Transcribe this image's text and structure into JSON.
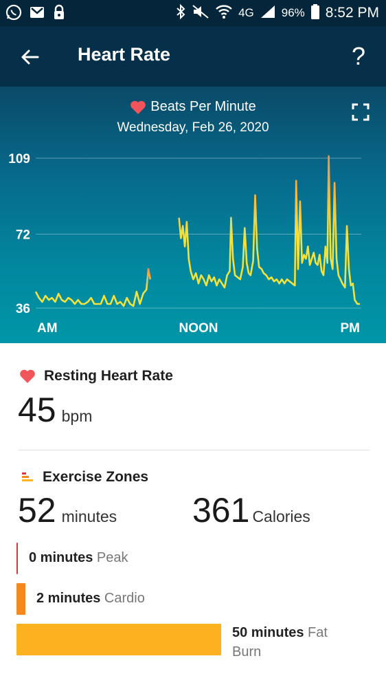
{
  "status_bar": {
    "battery": "96%",
    "time": "8:52 PM",
    "network": "4G",
    "left_icons": [
      "whatsapp-icon",
      "gmail-icon",
      "lock-icon"
    ],
    "right_icons": [
      "bluetooth-icon",
      "mute-icon",
      "wifi-icon",
      "signal-icon",
      "battery-icon"
    ]
  },
  "app_bar": {
    "title": "Heart Rate",
    "back_icon": "back-arrow-icon",
    "help_label": "?"
  },
  "chart": {
    "title": "Beats Per Minute",
    "subtitle": "Wednesday, Feb 26, 2020",
    "expand_icon": "fullscreen-icon"
  },
  "chart_data": {
    "type": "line",
    "title": "Beats Per Minute",
    "subtitle": "Wednesday, Feb 26, 2020",
    "xlabel": "",
    "ylabel": "",
    "x_tick_labels": [
      "AM",
      "NOON",
      "PM"
    ],
    "y_ticks": [
      36,
      72,
      109
    ],
    "ylim": [
      36,
      109
    ],
    "grid": true,
    "series": [
      {
        "color_low": "#f4e23c",
        "color_high": "#f2934a",
        "segments": [
          [
            [
              0.0,
              44
            ],
            [
              0.5,
              41
            ],
            [
              1.0,
              39
            ],
            [
              1.5,
              42
            ],
            [
              2.0,
              40
            ],
            [
              2.5,
              41
            ],
            [
              3.0,
              39
            ],
            [
              3.5,
              43
            ],
            [
              4.0,
              40
            ],
            [
              4.5,
              39
            ],
            [
              5.0,
              41
            ],
            [
              5.5,
              40
            ],
            [
              6.0,
              38
            ],
            [
              6.5,
              40
            ],
            [
              7.0,
              38
            ],
            [
              7.5,
              38
            ],
            [
              8.0,
              39
            ],
            [
              8.5,
              41
            ],
            [
              9.0,
              38
            ],
            [
              9.5,
              38
            ],
            [
              10.0,
              38
            ],
            [
              10.5,
              42
            ],
            [
              11.0,
              38
            ],
            [
              11.5,
              38
            ],
            [
              12.0,
              42
            ],
            [
              12.5,
              38
            ],
            [
              13.0,
              39
            ],
            [
              13.5,
              37
            ],
            [
              14.0,
              41
            ],
            [
              14.5,
              38
            ],
            [
              15.0,
              37
            ],
            [
              15.5,
              44
            ],
            [
              16.0,
              38
            ],
            [
              16.5,
              43
            ],
            [
              17.0,
              45
            ],
            [
              17.3,
              55
            ],
            [
              17.6,
              50
            ]
          ],
          [
            [
              22.0,
              80
            ],
            [
              22.3,
              70
            ],
            [
              22.6,
              76
            ],
            [
              22.9,
              66
            ],
            [
              23.2,
              78
            ],
            [
              23.5,
              60
            ],
            [
              23.8,
              54
            ],
            [
              24.2,
              50
            ],
            [
              24.6,
              53
            ],
            [
              25.0,
              48
            ],
            [
              25.4,
              52
            ],
            [
              25.8,
              50
            ],
            [
              26.2,
              47
            ],
            [
              26.6,
              52
            ],
            [
              27.0,
              49
            ],
            [
              27.4,
              51
            ],
            [
              27.8,
              47
            ],
            [
              28.2,
              50
            ],
            [
              28.6,
              48
            ],
            [
              29.0,
              46
            ],
            [
              29.4,
              52
            ],
            [
              29.8,
              54
            ],
            [
              30.0,
              80
            ],
            [
              30.3,
              60
            ],
            [
              30.6,
              52
            ],
            [
              31.0,
              51
            ],
            [
              31.4,
              50
            ],
            [
              31.8,
              56
            ],
            [
              32.1,
              75
            ],
            [
              32.4,
              58
            ],
            [
              32.7,
              53
            ],
            [
              33.0,
              52
            ],
            [
              33.4,
              59
            ],
            [
              33.7,
              91
            ],
            [
              34.0,
              65
            ],
            [
              34.3,
              56
            ],
            [
              34.7,
              55
            ],
            [
              35.0,
              53
            ],
            [
              35.4,
              52
            ],
            [
              35.8,
              50
            ],
            [
              36.2,
              51
            ],
            [
              36.6,
              49
            ],
            [
              37.0,
              50
            ],
            [
              37.4,
              48
            ],
            [
              37.8,
              50
            ],
            [
              38.2,
              48
            ],
            [
              38.6,
              50
            ],
            [
              39.0,
              49
            ],
            [
              39.4,
              48
            ],
            [
              39.8,
              47
            ],
            [
              40.0,
              98
            ],
            [
              40.3,
              55
            ],
            [
              40.6,
              88
            ],
            [
              40.9,
              58
            ],
            [
              41.2,
              62
            ],
            [
              41.5,
              60
            ],
            [
              41.8,
              66
            ],
            [
              42.1,
              57
            ],
            [
              42.4,
              60
            ],
            [
              42.7,
              63
            ],
            [
              43.0,
              58
            ],
            [
              43.3,
              57
            ],
            [
              43.6,
              62
            ],
            [
              43.9,
              54
            ],
            [
              44.2,
              52
            ],
            [
              44.5,
              66
            ],
            [
              44.8,
              58
            ],
            [
              45.0,
              110
            ],
            [
              45.3,
              60
            ],
            [
              45.6,
              55
            ],
            [
              45.9,
              97
            ],
            [
              46.2,
              60
            ],
            [
              46.5,
              52
            ],
            [
              46.8,
              50
            ],
            [
              47.1,
              48
            ],
            [
              47.5,
              46
            ],
            [
              47.8,
              76
            ],
            [
              48.1,
              55
            ],
            [
              48.4,
              47
            ],
            [
              48.7,
              48
            ],
            [
              49.0,
              40
            ],
            [
              49.4,
              38
            ],
            [
              49.8,
              38
            ]
          ]
        ]
      }
    ]
  },
  "resting": {
    "title": "Resting Heart Rate",
    "value": "45",
    "unit": "bpm"
  },
  "exercise": {
    "title": "Exercise Zones",
    "minutes_value": "52",
    "minutes_unit": "minutes",
    "calories_value": "361",
    "calories_unit": "Calories",
    "zones": [
      {
        "minutes": "0 minutes",
        "name": "Peak",
        "color": "#d8353f",
        "value": 0
      },
      {
        "minutes": "2 minutes",
        "name": "Cardio",
        "color": "#f5881f",
        "value": 2
      },
      {
        "minutes": "50 minutes",
        "name": "Fat Burn",
        "name_line1": "Fat",
        "name_line2": "Burn",
        "color": "#fbb21e",
        "value": 50
      }
    ]
  },
  "colors": {
    "heart": "#f2545b",
    "header_bg": "#06304a",
    "status_bg": "#04253a"
  }
}
